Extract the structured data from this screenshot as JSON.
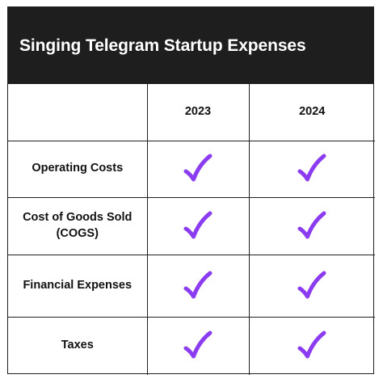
{
  "title": "Singing Telegram Startup Expenses",
  "columns": [
    "",
    "2023",
    "2024"
  ],
  "rows": [
    {
      "label": "Operating Costs",
      "y2023": true,
      "y2024": true
    },
    {
      "label": "Cost of Goods Sold (COGS)",
      "y2023": true,
      "y2024": true
    },
    {
      "label": "Financial Expenses",
      "y2023": true,
      "y2024": true
    },
    {
      "label": "Taxes",
      "y2023": true,
      "y2024": true
    }
  ],
  "colors": {
    "header_bg": "#1e1e1e",
    "check": "#8b3cf0",
    "border": "#1f1f1f"
  },
  "icons": {
    "check": "checkmark-icon"
  }
}
